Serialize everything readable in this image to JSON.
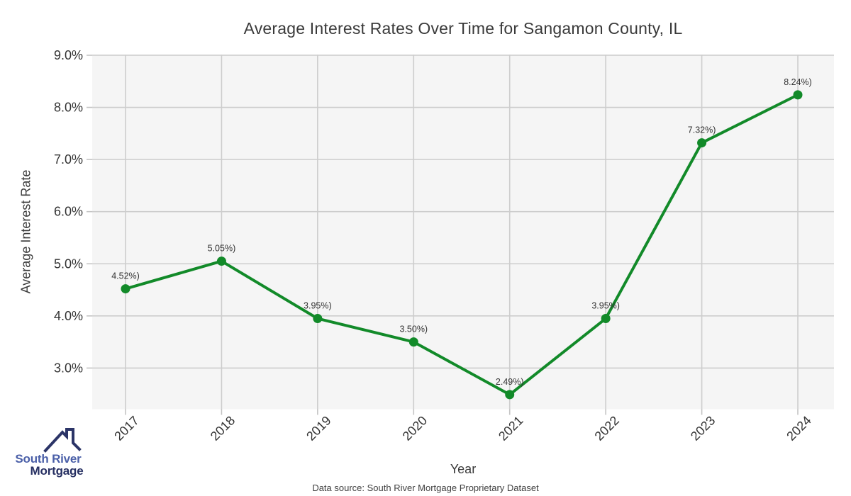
{
  "page": {
    "background": "#ffffff"
  },
  "chart_data": {
    "type": "line",
    "title": "Average Interest Rates Over Time for Sangamon County, IL",
    "xlabel": "Year",
    "ylabel": "Average Interest Rate",
    "categories": [
      "2017",
      "2018",
      "2019",
      "2020",
      "2021",
      "2022",
      "2023",
      "2024"
    ],
    "series": [
      {
        "name": "Average Interest Rate",
        "values": [
          4.52,
          5.05,
          3.95,
          3.5,
          2.49,
          3.95,
          7.32,
          8.24
        ],
        "point_labels": [
          "4.52%)",
          "5.05%)",
          "3.95%)",
          "3.50%)",
          "2.49%)",
          "3.95%)",
          "7.32%)",
          "8.24%)"
        ]
      }
    ],
    "ytick_values": [
      3,
      4,
      5,
      6,
      7,
      8,
      9
    ],
    "ytick_labels": [
      "3.0%",
      "4.0%",
      "5.0%",
      "6.0%",
      "7.0%",
      "8.0%",
      "9.0%"
    ],
    "ylim": [
      2.22,
      9.0
    ],
    "grid": true,
    "legend": false,
    "colors": {
      "line": "#128A29",
      "marker": "#128A29",
      "plot_background": "#f5f5f5",
      "grid": "#cdcdcd",
      "tick": "#c4c4c4",
      "text": "#3a3a3a",
      "tick_text": "#333333",
      "point_label_text": "#333333"
    }
  },
  "footer": {
    "text": "Data source: South River Mortgage Proprietary Dataset"
  },
  "logo": {
    "line1": "South River",
    "line2": "Mortgage",
    "line1_color": "#4a5fa8",
    "line2_color": "#262f62",
    "roof_color": "#2b3467"
  }
}
